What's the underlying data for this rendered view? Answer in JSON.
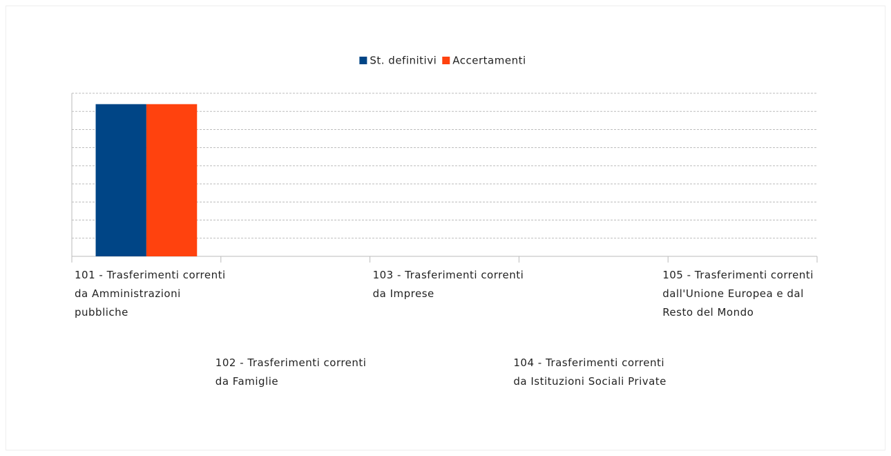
{
  "chart_data": {
    "type": "bar",
    "categories": [
      "101 - Trasferimenti correnti da Amministrazioni pubbliche",
      "102 - Trasferimenti correnti da Famiglie",
      "103 - Trasferimenti correnti da Imprese",
      "104 - Trasferimenti correnti da Istituzioni Sociali Private",
      "105 - Trasferimenti correnti dall'Unione Europea e dal Resto del Mondo"
    ],
    "series": [
      {
        "name": "St. definitivi",
        "color": "#004586",
        "values": [
          8.4,
          0,
          0,
          0,
          0
        ]
      },
      {
        "name": "Accertamenti",
        "color": "#ff420e",
        "values": [
          8.4,
          0,
          0,
          0,
          0
        ]
      }
    ],
    "ylim": [
      0,
      9
    ],
    "yticks": [
      0,
      1,
      2,
      3,
      4,
      5,
      6,
      7,
      8,
      9
    ],
    "grid": true,
    "legend": "top"
  }
}
